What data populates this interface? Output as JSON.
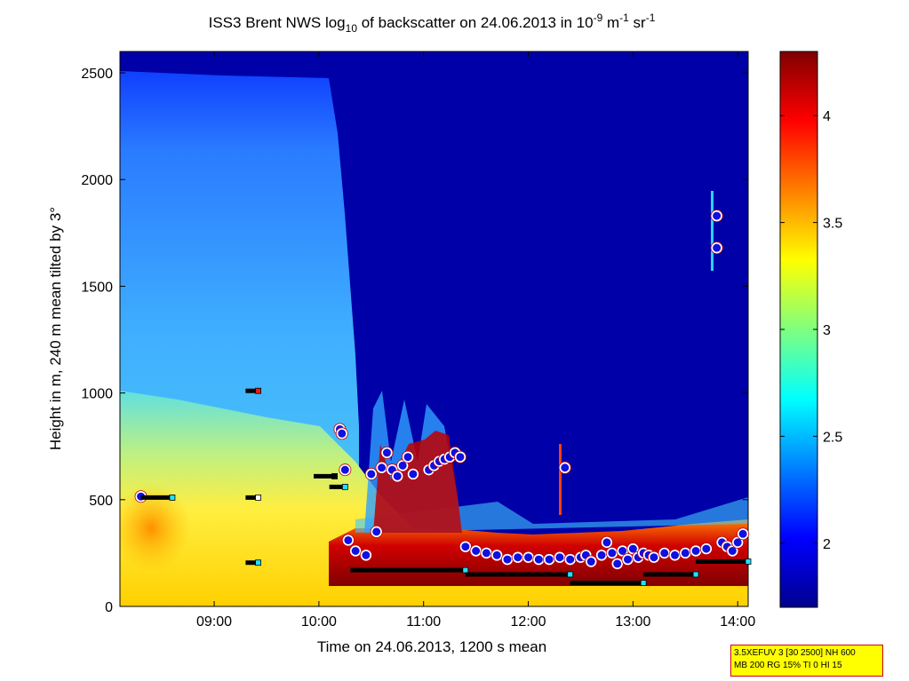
{
  "chart_data": {
    "type": "heatmap",
    "title": {
      "prefix": "ISS3 Brent NWS log",
      "log_base": "10",
      "middle": " of backscatter on 24.06.2013 in 10",
      "exp1": "-9",
      "unit1": " m",
      "exp2": "-1",
      "unit2": " sr",
      "exp3": "-1"
    },
    "xlabel": "Time on 24.06.2013, 1200 s mean",
    "ylabel": "Height in m, 240 m mean tilted by 3°",
    "x_range_hours": [
      8.1,
      14.1
    ],
    "y_range": [
      0,
      2600
    ],
    "x_ticks": [
      {
        "value": 9,
        "label": "09:00"
      },
      {
        "value": 10,
        "label": "10:00"
      },
      {
        "value": 11,
        "label": "11:00"
      },
      {
        "value": 12,
        "label": "12:00"
      },
      {
        "value": 13,
        "label": "13:00"
      },
      {
        "value": 14,
        "label": "14:00"
      }
    ],
    "y_ticks": [
      {
        "value": 0,
        "label": "0"
      },
      {
        "value": 500,
        "label": "500"
      },
      {
        "value": 1000,
        "label": "1000"
      },
      {
        "value": 1500,
        "label": "1500"
      },
      {
        "value": 2000,
        "label": "2000"
      },
      {
        "value": 2500,
        "label": "2500"
      }
    ],
    "colorbar": {
      "range": [
        1.7,
        4.3
      ],
      "ticks": [
        {
          "value": 2,
          "label": "2"
        },
        {
          "value": 2.5,
          "label": "2.5"
        },
        {
          "value": 3,
          "label": "3"
        },
        {
          "value": 3.5,
          "label": "3.5"
        },
        {
          "value": 4,
          "label": "4"
        }
      ]
    },
    "cloud_base_markers": [
      {
        "t": 8.3,
        "h": 515
      },
      {
        "t": 10.2,
        "h": 830
      },
      {
        "t": 10.22,
        "h": 810
      },
      {
        "t": 10.25,
        "h": 640
      },
      {
        "t": 10.28,
        "h": 310
      },
      {
        "t": 10.35,
        "h": 260
      },
      {
        "t": 10.45,
        "h": 240
      },
      {
        "t": 10.5,
        "h": 620
      },
      {
        "t": 10.55,
        "h": 350
      },
      {
        "t": 10.6,
        "h": 650
      },
      {
        "t": 10.65,
        "h": 720
      },
      {
        "t": 10.7,
        "h": 640
      },
      {
        "t": 10.75,
        "h": 610
      },
      {
        "t": 10.8,
        "h": 660
      },
      {
        "t": 10.85,
        "h": 700
      },
      {
        "t": 10.9,
        "h": 620
      },
      {
        "t": 11.05,
        "h": 640
      },
      {
        "t": 11.1,
        "h": 660
      },
      {
        "t": 11.15,
        "h": 680
      },
      {
        "t": 11.2,
        "h": 690
      },
      {
        "t": 11.25,
        "h": 700
      },
      {
        "t": 11.3,
        "h": 720
      },
      {
        "t": 11.35,
        "h": 700
      },
      {
        "t": 11.4,
        "h": 280
      },
      {
        "t": 11.5,
        "h": 260
      },
      {
        "t": 11.6,
        "h": 250
      },
      {
        "t": 11.7,
        "h": 240
      },
      {
        "t": 11.8,
        "h": 220
      },
      {
        "t": 11.9,
        "h": 230
      },
      {
        "t": 12.0,
        "h": 230
      },
      {
        "t": 12.1,
        "h": 220
      },
      {
        "t": 12.2,
        "h": 220
      },
      {
        "t": 12.3,
        "h": 230
      },
      {
        "t": 12.35,
        "h": 650
      },
      {
        "t": 12.4,
        "h": 220
      },
      {
        "t": 12.5,
        "h": 230
      },
      {
        "t": 12.55,
        "h": 240
      },
      {
        "t": 12.6,
        "h": 210
      },
      {
        "t": 12.7,
        "h": 240
      },
      {
        "t": 12.75,
        "h": 300
      },
      {
        "t": 12.8,
        "h": 250
      },
      {
        "t": 12.85,
        "h": 200
      },
      {
        "t": 12.9,
        "h": 260
      },
      {
        "t": 12.95,
        "h": 220
      },
      {
        "t": 13.0,
        "h": 270
      },
      {
        "t": 13.05,
        "h": 230
      },
      {
        "t": 13.1,
        "h": 250
      },
      {
        "t": 13.15,
        "h": 240
      },
      {
        "t": 13.2,
        "h": 230
      },
      {
        "t": 13.3,
        "h": 250
      },
      {
        "t": 13.4,
        "h": 240
      },
      {
        "t": 13.5,
        "h": 250
      },
      {
        "t": 13.6,
        "h": 260
      },
      {
        "t": 13.7,
        "h": 270
      },
      {
        "t": 13.8,
        "h": 1830
      },
      {
        "t": 13.8,
        "h": 1680
      },
      {
        "t": 13.85,
        "h": 300
      },
      {
        "t": 13.9,
        "h": 280
      },
      {
        "t": 13.95,
        "h": 260
      },
      {
        "t": 14.0,
        "h": 300
      },
      {
        "t": 14.05,
        "h": 340
      }
    ],
    "mixing_layer_segments": [
      {
        "t0": 8.3,
        "t1": 8.6,
        "h": 510,
        "type": "cyan"
      },
      {
        "t0": 9.3,
        "t1": 9.42,
        "h": 510,
        "type": "white"
      },
      {
        "t0": 9.3,
        "t1": 9.42,
        "h": 1010,
        "type": "red"
      },
      {
        "t0": 9.3,
        "t1": 9.42,
        "h": 205,
        "type": "cyan"
      },
      {
        "t0": 9.95,
        "t1": 10.15,
        "h": 610,
        "type": "black"
      },
      {
        "t0": 10.1,
        "t1": 10.25,
        "h": 560,
        "type": "cyan"
      },
      {
        "t0": 10.3,
        "t1": 11.4,
        "h": 170,
        "type": "cyan"
      },
      {
        "t0": 11.4,
        "t1": 12.4,
        "h": 150,
        "type": "cyan"
      },
      {
        "t0": 12.4,
        "t1": 13.1,
        "h": 110,
        "type": "cyan"
      },
      {
        "t0": 13.1,
        "t1": 13.6,
        "h": 150,
        "type": "cyan"
      },
      {
        "t0": 13.6,
        "t1": 14.1,
        "h": 210,
        "type": "cyan"
      }
    ],
    "colors": {
      "low": "#00008f",
      "mid": "#00ffff",
      "high": "#ffff00",
      "peak": "#800000",
      "marker_fill": "#1010e0",
      "marker_ring": "#ffffff",
      "marker_edge": "#c00000"
    }
  },
  "info_box": {
    "line1": "3.5XEFUV 3 [30 2500] NH 600",
    "line2": "MB 200 RG 15% TI 0 HI 15"
  }
}
